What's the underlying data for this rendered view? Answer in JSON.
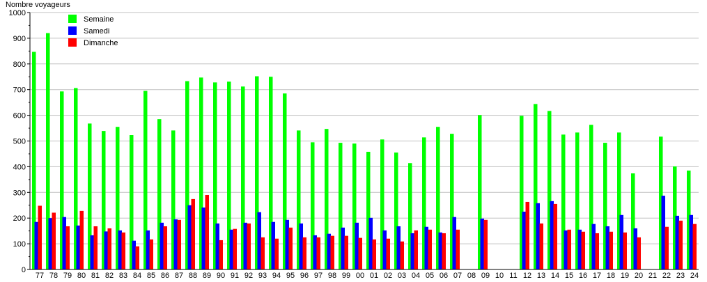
{
  "chart_data": {
    "type": "bar",
    "title": "",
    "ylabel": "Nombre voyageurs",
    "xlabel": "",
    "ylim": [
      0,
      1000
    ],
    "yticks": [
      0,
      100,
      200,
      300,
      400,
      500,
      600,
      700,
      800,
      900,
      1000
    ],
    "grid": true,
    "legend_placement": "top-left",
    "categories": [
      "77",
      "78",
      "79",
      "80",
      "81",
      "82",
      "83",
      "84",
      "85",
      "86",
      "87",
      "88",
      "89",
      "90",
      "91",
      "92",
      "93",
      "94",
      "95",
      "96",
      "97",
      "98",
      "99",
      "00",
      "01",
      "02",
      "03",
      "04",
      "05",
      "06",
      "07",
      "08",
      "09",
      "10",
      "11",
      "12",
      "13",
      "14",
      "15",
      "16",
      "17",
      "18",
      "19",
      "20",
      "21",
      "22",
      "23",
      "24"
    ],
    "series": [
      {
        "name": "Semaine",
        "color": "#00ff00",
        "values": [
          847,
          920,
          693,
          706,
          568,
          539,
          555,
          523,
          695,
          585,
          541,
          733,
          747,
          728,
          731,
          712,
          752,
          750,
          685,
          541,
          495,
          547,
          493,
          490,
          458,
          506,
          455,
          414,
          514,
          555,
          528,
          null,
          601,
          null,
          null,
          598,
          644,
          617,
          525,
          533,
          563,
          493,
          533,
          374,
          null,
          517,
          401,
          385
        ]
      },
      {
        "name": "Samedi",
        "color": "#0000ff",
        "values": [
          185,
          200,
          204,
          171,
          133,
          148,
          152,
          112,
          152,
          182,
          195,
          250,
          241,
          179,
          155,
          182,
          223,
          185,
          193,
          179,
          133,
          139,
          163,
          182,
          201,
          152,
          168,
          141,
          166,
          144,
          204,
          null,
          198,
          null,
          null,
          225,
          258,
          266,
          152,
          155,
          177,
          168,
          212,
          160,
          null,
          287,
          209,
          212
        ]
      },
      {
        "name": "Dimanche",
        "color": "#ff0000",
        "values": [
          248,
          221,
          168,
          228,
          168,
          160,
          144,
          90,
          117,
          168,
          193,
          274,
          290,
          114,
          158,
          179,
          125,
          120,
          163,
          125,
          125,
          131,
          131,
          123,
          117,
          120,
          109,
          152,
          155,
          141,
          155,
          null,
          193,
          null,
          null,
          263,
          179,
          255,
          155,
          147,
          141,
          147,
          144,
          125,
          null,
          166,
          190,
          177
        ]
      }
    ]
  }
}
